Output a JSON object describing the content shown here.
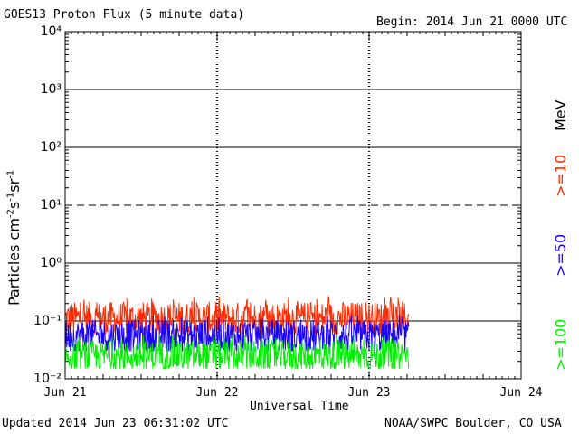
{
  "header": {
    "title": "GOES13 Proton Flux (5 minute data)",
    "begin": "Begin: 2014 Jun 21 0000 UTC"
  },
  "footer": {
    "updated": "Updated 2014 Jun 23 06:31:02 UTC",
    "source": "NOAA/SWPC Boulder, CO USA"
  },
  "legend": {
    "unit": "MeV",
    "items": [
      {
        "label": ">=10",
        "color": "#ff2a00"
      },
      {
        "label": ">=50",
        "color": "#1a00ff"
      },
      {
        "label": ">=100",
        "color": "#00ee00"
      }
    ]
  },
  "chart_data": {
    "type": "line",
    "xlabel": "Universal Time",
    "ylabel": "Particles cm⁻²s⁻¹sr⁻¹",
    "yscale": "log",
    "ylim": [
      0.01,
      10000
    ],
    "y_ticks": [
      "10⁻²",
      "10⁻¹",
      "10⁰",
      "10¹",
      "10²",
      "10³",
      "10⁴"
    ],
    "x_ticks": [
      "Jun 21",
      "Jun 22",
      "Jun 23",
      "Jun 24"
    ],
    "x_range_days": [
      0,
      3
    ],
    "data_end_day": 2.26,
    "reference_lines": [
      {
        "y": 0.1,
        "style": "solid"
      },
      {
        "y": 1,
        "style": "solid"
      },
      {
        "y": 10,
        "style": "dashed"
      },
      {
        "y": 100,
        "style": "solid"
      },
      {
        "y": 1000,
        "style": "solid"
      }
    ],
    "series": [
      {
        "name": ">=10",
        "color": "#ff2a00",
        "typical": 0.11,
        "min": 0.06,
        "max": 0.27
      },
      {
        "name": ">=50",
        "color": "#1a00ff",
        "typical": 0.055,
        "min": 0.03,
        "max": 0.13
      },
      {
        "name": ">=100",
        "color": "#00ee00",
        "typical": 0.025,
        "min": 0.015,
        "max": 0.06
      }
    ]
  }
}
